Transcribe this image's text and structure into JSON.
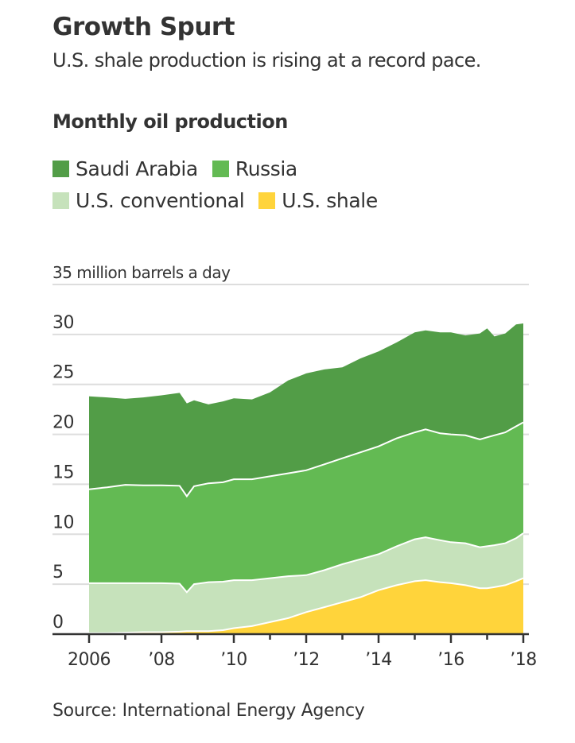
{
  "header": {
    "title": "Growth Spurt",
    "subtitle": "U.S. shale production is rising at a record pace."
  },
  "chart_heading": "Monthly oil production",
  "legend": [
    {
      "label": "Saudi Arabia",
      "color": "#529d47"
    },
    {
      "label": "Russia",
      "color": "#63ba53"
    },
    {
      "label": "U.S. conventional",
      "color": "#c6e2bb"
    },
    {
      "label": "U.S. shale",
      "color": "#ffd43b"
    }
  ],
  "source": "Source: International Energy Agency",
  "chart_data": {
    "type": "area",
    "stacked": true,
    "title": "Monthly oil production",
    "ylabel": "million barrels a day",
    "y_top_label": "35 million barrels a day",
    "ylim": [
      0,
      35
    ],
    "xlim": [
      2006,
      2018
    ],
    "yticks": [
      0,
      5,
      10,
      15,
      20,
      25,
      30,
      35
    ],
    "ytick_labels": [
      "0",
      "5",
      "10",
      "15",
      "20",
      "25",
      "30",
      "35 million barrels a day"
    ],
    "xticks": [
      2006,
      2007,
      2008,
      2009,
      2010,
      2011,
      2012,
      2013,
      2014,
      2015,
      2016,
      2017,
      2018
    ],
    "xtick_labels": [
      {
        "x": 2006,
        "label": "2006"
      },
      {
        "x": 2008,
        "label": "’08"
      },
      {
        "x": 2010,
        "label": "’10"
      },
      {
        "x": 2012,
        "label": "’12"
      },
      {
        "x": 2014,
        "label": "’14"
      },
      {
        "x": 2016,
        "label": "’16"
      },
      {
        "x": 2018,
        "label": "’18"
      }
    ],
    "grid": true,
    "legend_position": "top-left",
    "x": [
      2006.0,
      2006.5,
      2007.0,
      2007.5,
      2008.0,
      2008.5,
      2008.7,
      2008.9,
      2009.3,
      2009.7,
      2010.0,
      2010.5,
      2011.0,
      2011.5,
      2012.0,
      2012.5,
      2013.0,
      2013.5,
      2014.0,
      2014.5,
      2015.0,
      2015.3,
      2015.7,
      2016.0,
      2016.4,
      2016.8,
      2017.0,
      2017.2,
      2017.5,
      2017.8,
      2018.0
    ],
    "series": [
      {
        "name": "U.S. shale",
        "color": "#ffd43b",
        "values": [
          0.1,
          0.1,
          0.15,
          0.2,
          0.2,
          0.25,
          0.3,
          0.3,
          0.3,
          0.4,
          0.6,
          0.8,
          1.2,
          1.6,
          2.2,
          2.7,
          3.2,
          3.7,
          4.4,
          4.9,
          5.3,
          5.4,
          5.2,
          5.1,
          4.9,
          4.6,
          4.6,
          4.7,
          4.9,
          5.3,
          5.6
        ]
      },
      {
        "name": "U.S. conventional",
        "color": "#c6e2bb",
        "values": [
          5.0,
          5.0,
          4.95,
          4.9,
          4.9,
          4.8,
          3.9,
          4.7,
          4.9,
          4.85,
          4.8,
          4.6,
          4.4,
          4.2,
          3.7,
          3.7,
          3.8,
          3.8,
          3.6,
          3.9,
          4.2,
          4.3,
          4.2,
          4.1,
          4.2,
          4.1,
          4.2,
          4.2,
          4.2,
          4.3,
          4.5
        ]
      },
      {
        "name": "Russia",
        "color": "#63ba53",
        "values": [
          9.4,
          9.6,
          9.85,
          9.8,
          9.8,
          9.8,
          9.6,
          9.8,
          9.9,
          9.95,
          10.1,
          10.1,
          10.2,
          10.3,
          10.5,
          10.6,
          10.6,
          10.7,
          10.8,
          10.8,
          10.7,
          10.8,
          10.7,
          10.8,
          10.8,
          10.8,
          10.9,
          11.0,
          11.1,
          11.2,
          11.1
        ]
      },
      {
        "name": "Saudi Arabia",
        "color": "#529d47",
        "values": [
          9.3,
          9.0,
          8.6,
          8.8,
          9.0,
          9.3,
          9.3,
          8.6,
          7.9,
          8.1,
          8.1,
          8.0,
          8.4,
          9.3,
          9.7,
          9.5,
          9.1,
          9.4,
          9.5,
          9.6,
          10.0,
          9.9,
          10.1,
          10.2,
          10.0,
          10.6,
          10.9,
          9.9,
          9.9,
          10.2,
          9.9
        ]
      }
    ]
  }
}
